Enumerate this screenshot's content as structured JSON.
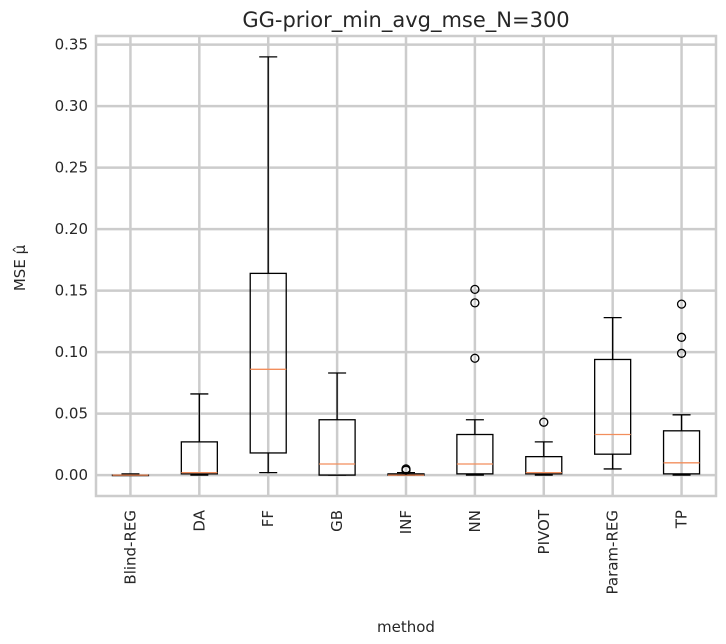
{
  "chart_data": {
    "type": "box",
    "title": "GG-prior_min_avg_mse_N=300",
    "xlabel": "method",
    "ylabel": "MSE μ̂",
    "ylim": [
      -0.017,
      0.357
    ],
    "yticks": [
      0.0,
      0.05,
      0.1,
      0.15,
      0.2,
      0.25,
      0.3,
      0.35
    ],
    "ytick_labels": [
      "0.00",
      "0.05",
      "0.10",
      "0.15",
      "0.20",
      "0.25",
      "0.30",
      "0.35"
    ],
    "grid": true,
    "categories": [
      "Blind-REG",
      "DA",
      "FF",
      "GB",
      "INF",
      "NN",
      "PIVOT",
      "Param-REG",
      "TP"
    ],
    "boxes": [
      {
        "whisker_low": 0.0,
        "q1": 0.0,
        "median": 0.0,
        "q3": 0.0,
        "whisker_high": 0.001,
        "outliers": []
      },
      {
        "whisker_low": 0.0,
        "q1": 0.001,
        "median": 0.002,
        "q3": 0.027,
        "whisker_high": 0.066,
        "outliers": []
      },
      {
        "whisker_low": 0.002,
        "q1": 0.018,
        "median": 0.086,
        "q3": 0.164,
        "whisker_high": 0.34,
        "outliers": []
      },
      {
        "whisker_low": 0.0,
        "q1": 0.0,
        "median": 0.009,
        "q3": 0.045,
        "whisker_high": 0.083,
        "outliers": []
      },
      {
        "whisker_low": 0.0,
        "q1": 0.0,
        "median": 0.0,
        "q3": 0.001,
        "whisker_high": 0.002,
        "outliers": [
          0.004,
          0.005
        ]
      },
      {
        "whisker_low": 0.0,
        "q1": 0.001,
        "median": 0.009,
        "q3": 0.033,
        "whisker_high": 0.045,
        "outliers": [
          0.095,
          0.14,
          0.151
        ]
      },
      {
        "whisker_low": 0.0,
        "q1": 0.001,
        "median": 0.002,
        "q3": 0.015,
        "whisker_high": 0.027,
        "outliers": [
          0.043
        ]
      },
      {
        "whisker_low": 0.005,
        "q1": 0.017,
        "median": 0.033,
        "q3": 0.094,
        "whisker_high": 0.128,
        "outliers": []
      },
      {
        "whisker_low": 0.0,
        "q1": 0.001,
        "median": 0.01,
        "q3": 0.036,
        "whisker_high": 0.049,
        "outliers": [
          0.099,
          0.112,
          0.139
        ]
      }
    ],
    "colors": {
      "background": "#ffffff",
      "grid": "#cccccc",
      "spine": "#cccccc",
      "box": "#000000",
      "median": "#f28e5c",
      "text": "#262626"
    }
  }
}
